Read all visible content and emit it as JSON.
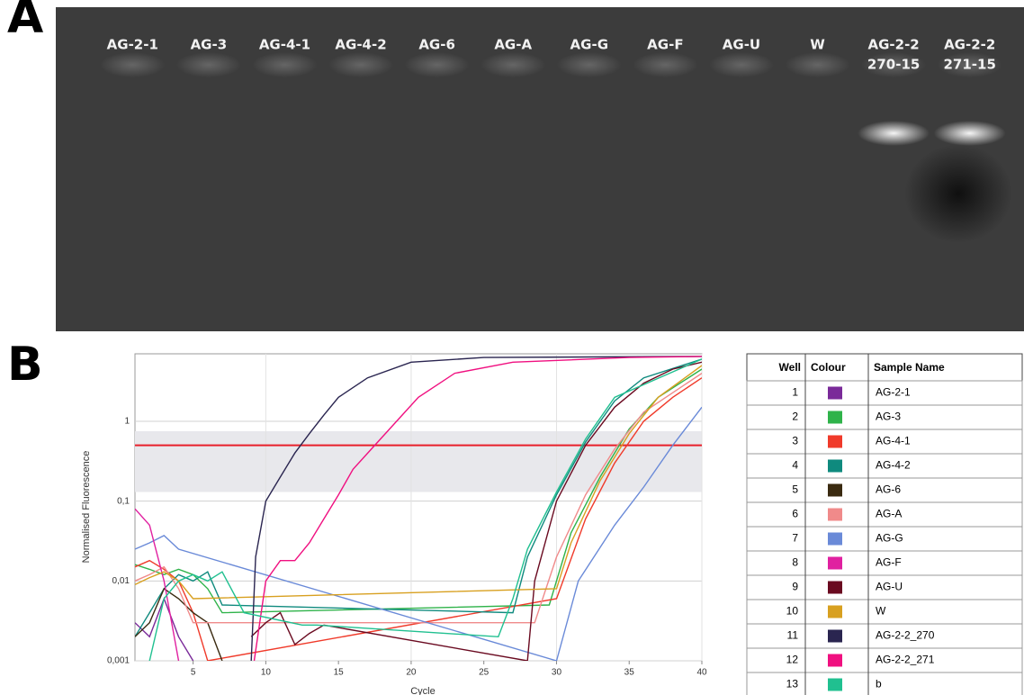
{
  "panel_a": {
    "label": "A",
    "lanes": [
      [
        "AG-2-1"
      ],
      [
        "AG-3"
      ],
      [
        "AG-4-1"
      ],
      [
        "AG-4-2"
      ],
      [
        "AG-6"
      ],
      [
        "AG-A"
      ],
      [
        "AG-G"
      ],
      [
        "AG-F"
      ],
      [
        "AG-U"
      ],
      [
        "W"
      ],
      [
        "AG-2-2",
        "270-15"
      ],
      [
        "AG-2-2",
        "271-15"
      ]
    ]
  },
  "panel_b": {
    "label": "B"
  },
  "chart_data": {
    "type": "line",
    "x_label": "Cycle",
    "y_label": "Normalised Fluorescence",
    "log_y": true,
    "grid": true,
    "xlim": [
      1,
      40
    ],
    "xticks": [
      5,
      10,
      15,
      20,
      25,
      30,
      35,
      40
    ],
    "ylim": [
      0.001,
      7
    ],
    "yticks": [
      {
        "value": 0.001,
        "label": "0,001"
      },
      {
        "value": 0.01,
        "label": "0,01"
      },
      {
        "value": 0.1,
        "label": "0,1"
      },
      1
    ],
    "threshold": 0.5,
    "threshold_color": "#e8202a",
    "band": [
      0.13,
      0.75
    ],
    "series": [
      {
        "name": "AG-2-1",
        "color": "#7a2a99",
        "x": [
          1,
          2,
          3,
          4,
          5
        ],
        "values": [
          0.003,
          0.002,
          0.006,
          0.002,
          0.001
        ]
      },
      {
        "name": "AG-3",
        "color": "#2fb34a",
        "x": [
          1,
          2,
          3,
          4,
          5,
          6,
          7,
          29.5,
          31,
          33,
          35,
          37,
          40
        ],
        "values": [
          0.016,
          0.014,
          0.012,
          0.014,
          0.012,
          0.008,
          0.004,
          0.005,
          0.04,
          0.2,
          0.8,
          2,
          4.5
        ]
      },
      {
        "name": "AG-4-1",
        "color": "#f03a2a",
        "x": [
          1,
          2,
          3,
          4,
          5,
          6,
          30,
          32,
          34,
          36,
          38,
          40
        ],
        "values": [
          0.015,
          0.018,
          0.014,
          0.01,
          0.004,
          0.001,
          0.006,
          0.06,
          0.3,
          1,
          2,
          3.5
        ]
      },
      {
        "name": "AG-4-2",
        "color": "#0f8a7e",
        "x": [
          1,
          2,
          3,
          4,
          5,
          6,
          7,
          27,
          28,
          30,
          32,
          34,
          36,
          40
        ],
        "values": [
          0.002,
          0.004,
          0.008,
          0.012,
          0.01,
          0.013,
          0.005,
          0.004,
          0.02,
          0.12,
          0.55,
          1.8,
          3.5,
          6
        ]
      },
      {
        "name": "AG-6",
        "color": "#3a2a10",
        "x": [
          1,
          2,
          3,
          4,
          5,
          6,
          7
        ],
        "values": [
          0.002,
          0.003,
          0.008,
          0.006,
          0.004,
          0.003,
          0.001
        ]
      },
      {
        "name": "AG-A",
        "color": "#f08a8a",
        "x": [
          1,
          2,
          3,
          4,
          5,
          28.5,
          30,
          32,
          34,
          36,
          40
        ],
        "values": [
          0.01,
          0.012,
          0.015,
          0.008,
          0.003,
          0.003,
          0.02,
          0.12,
          0.45,
          1.3,
          4
        ]
      },
      {
        "name": "AG-G",
        "color": "#6a8ad8",
        "x": [
          1,
          2,
          3,
          4,
          30,
          31.5,
          34,
          36,
          38,
          40
        ],
        "values": [
          0.025,
          0.03,
          0.037,
          0.025,
          0.001,
          0.01,
          0.05,
          0.15,
          0.5,
          1.5
        ]
      },
      {
        "name": "AG-F",
        "color": "#e020a0",
        "x": [
          1,
          2,
          3,
          4
        ],
        "values": [
          0.08,
          0.05,
          0.01,
          0.001
        ]
      },
      {
        "name": "AG-U",
        "color": "#6a0a20",
        "x": [
          9,
          10,
          11,
          12,
          13,
          14,
          28,
          28.5,
          30,
          32,
          34,
          36,
          38,
          40
        ],
        "values": [
          0.002,
          0.003,
          0.004,
          0.0016,
          0.0022,
          0.0028,
          0.001,
          0.01,
          0.1,
          0.5,
          1.5,
          3,
          4.5,
          5.5
        ]
      },
      {
        "name": "W",
        "color": "#d8a020",
        "x": [
          1,
          2,
          3,
          4,
          5,
          30,
          31,
          33,
          35,
          37,
          40
        ],
        "values": [
          0.009,
          0.011,
          0.013,
          0.01,
          0.006,
          0.008,
          0.03,
          0.18,
          0.7,
          2,
          5
        ]
      },
      {
        "name": "AG-2-2_270",
        "color": "#2a2550",
        "x": [
          9,
          9.3,
          10,
          11,
          12,
          13,
          14,
          15,
          17,
          20,
          25,
          40
        ],
        "values": [
          0.001,
          0.02,
          0.1,
          0.2,
          0.4,
          0.7,
          1.2,
          2,
          3.5,
          5.5,
          6.3,
          6.5
        ]
      },
      {
        "name": "AG-2-2_271",
        "color": "#f01080",
        "x": [
          9.2,
          10,
          11,
          12,
          13,
          14,
          15,
          16,
          17.5,
          19,
          20.5,
          23,
          27,
          35,
          40
        ],
        "values": [
          0.001,
          0.01,
          0.018,
          0.018,
          0.03,
          0.06,
          0.12,
          0.25,
          0.5,
          1,
          2,
          4,
          5.5,
          6.3,
          6.5
        ]
      },
      {
        "name": "b",
        "color": "#20c090",
        "x": [
          2,
          3,
          4,
          5,
          6,
          7,
          8.5,
          12.5,
          13.5,
          26,
          27,
          28,
          30,
          32,
          34,
          40
        ],
        "values": [
          0.001,
          0.006,
          0.01,
          0.012,
          0.01,
          0.013,
          0.004,
          0.0028,
          0.0028,
          0.002,
          0.006,
          0.025,
          0.13,
          0.6,
          2,
          6
        ]
      }
    ]
  },
  "table": {
    "headers": [
      "Well",
      "Colour",
      "Sample Name"
    ],
    "wells": [
      1,
      2,
      3,
      4,
      5,
      6,
      7,
      8,
      9,
      10,
      11,
      12,
      13
    ]
  }
}
